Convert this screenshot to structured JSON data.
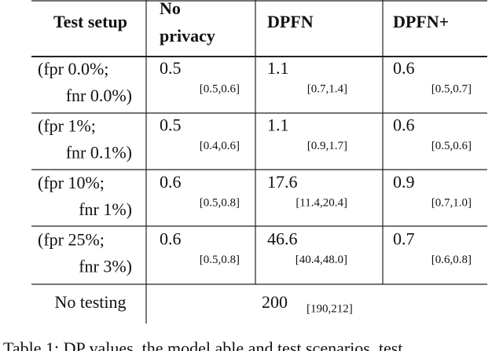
{
  "table": {
    "header": {
      "setup": "Test setup",
      "no_privacy": [
        "No",
        "privacy"
      ],
      "dpfn": "DPFN",
      "dpfn_plus": "DPFN+"
    },
    "rows": [
      {
        "setup": [
          "(fpr 0.0%;",
          "fnr 0.0%)"
        ],
        "cells": [
          {
            "value": "0.5",
            "ci": "[0.5,0.6]"
          },
          {
            "value": "1.1",
            "ci": "[0.7,1.4]"
          },
          {
            "value": "0.6",
            "ci": "[0.5,0.7]"
          }
        ]
      },
      {
        "setup": [
          "(fpr 1%;",
          "fnr 0.1%)"
        ],
        "cells": [
          {
            "value": "0.5",
            "ci": "[0.4,0.6]"
          },
          {
            "value": "1.1",
            "ci": "[0.9,1.7]"
          },
          {
            "value": "0.6",
            "ci": "[0.5,0.6]"
          }
        ]
      },
      {
        "setup": [
          "(fpr 10%;",
          "fnr 1%)"
        ],
        "cells": [
          {
            "value": "0.6",
            "ci": "[0.5,0.8]"
          },
          {
            "value": "17.6",
            "ci": "[11.4,20.4]"
          },
          {
            "value": "0.9",
            "ci": "[0.7,1.0]"
          }
        ]
      },
      {
        "setup": [
          "(fpr 25%;",
          "fnr 3%)"
        ],
        "cells": [
          {
            "value": "0.6",
            "ci": "[0.5,0.8]"
          },
          {
            "value": "46.6",
            "ci": "[40.4,48.0]"
          },
          {
            "value": "0.7",
            "ci": "[0.6,0.8]"
          }
        ]
      }
    ],
    "footer": {
      "setup": "No testing",
      "value": "200",
      "ci": "[190,212]"
    }
  },
  "caption": "Table 1: DP values, the model able and test scenarios, test"
}
